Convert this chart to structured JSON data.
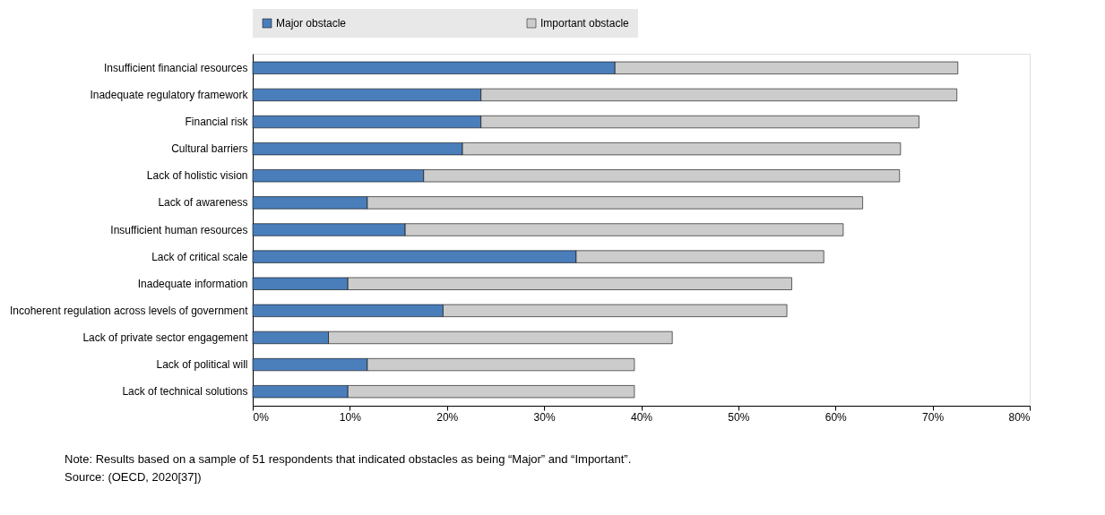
{
  "chart_data": {
    "type": "bar",
    "orientation": "horizontal",
    "stacked": true,
    "categories": [
      "Insufficient financial resources",
      "Inadequate regulatory framework",
      "Financial risk",
      "Cultural barriers",
      "Lack of holistic vision",
      "Lack of awareness",
      "Insufficient human resources",
      "Lack of critical scale",
      "Inadequate information",
      "Incoherent regulation across levels of government",
      "Lack of private sector engagement",
      "Lack of political will",
      "Lack of technical solutions"
    ],
    "series": [
      {
        "name": "Major obstacle",
        "color": "#4a7ebb",
        "values": [
          37.3,
          23.5,
          23.5,
          21.6,
          17.6,
          11.8,
          15.7,
          33.3,
          9.8,
          19.6,
          7.8,
          11.8,
          9.8
        ]
      },
      {
        "name": "Important obstacle",
        "color": "#cccccc",
        "values": [
          35.3,
          49.0,
          45.1,
          45.1,
          49.0,
          51.0,
          45.1,
          25.5,
          45.7,
          35.4,
          35.4,
          27.5,
          29.5
        ]
      }
    ],
    "xlim": [
      0,
      80
    ],
    "xticks": [
      {
        "value": 0,
        "label": "0%"
      },
      {
        "value": 10,
        "label": "10%"
      },
      {
        "value": 20,
        "label": "20%"
      },
      {
        "value": 30,
        "label": "30%"
      },
      {
        "value": 40,
        "label": "40%"
      },
      {
        "value": 50,
        "label": "50%"
      },
      {
        "value": 60,
        "label": "60%"
      },
      {
        "value": 70,
        "label": "70%"
      },
      {
        "value": 80,
        "label": "80%"
      }
    ],
    "grid": false,
    "legend": "top",
    "annotations": [
      "Note: Results based on a sample of 51 respondents that indicated obstacles as being “Major” and “Important”.",
      "Source: (OECD, 2020[37])"
    ]
  }
}
